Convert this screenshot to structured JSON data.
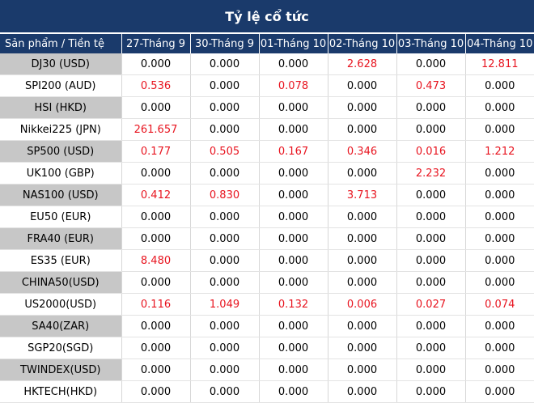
{
  "title": "Tỷ lệ cổ tức",
  "headers": [
    "Sản phẩm / Tiền tệ",
    "27-Tháng 9",
    "30-Tháng 9",
    "01-Tháng 10",
    "02-Tháng 10",
    "03-Tháng 10",
    "04-Tháng 10"
  ],
  "colors": {
    "header_bg": "#1a3a6b",
    "highlight": "#e8141f",
    "alt_row_bg": "#c7c7c7"
  },
  "rows": [
    {
      "product": "DJ30 (USD)",
      "values": [
        "0.000",
        "0.000",
        "0.000",
        "2.628",
        "0.000",
        "12.811"
      ]
    },
    {
      "product": "SPI200 (AUD)",
      "values": [
        "0.536",
        "0.000",
        "0.078",
        "0.000",
        "0.473",
        "0.000"
      ]
    },
    {
      "product": "HSI (HKD)",
      "values": [
        "0.000",
        "0.000",
        "0.000",
        "0.000",
        "0.000",
        "0.000"
      ]
    },
    {
      "product": "Nikkei225 (JPN)",
      "values": [
        "261.657",
        "0.000",
        "0.000",
        "0.000",
        "0.000",
        "0.000"
      ]
    },
    {
      "product": "SP500 (USD)",
      "values": [
        "0.177",
        "0.505",
        "0.167",
        "0.346",
        "0.016",
        "1.212"
      ]
    },
    {
      "product": "UK100 (GBP)",
      "values": [
        "0.000",
        "0.000",
        "0.000",
        "0.000",
        "2.232",
        "0.000"
      ]
    },
    {
      "product": "NAS100 (USD)",
      "values": [
        "0.412",
        "0.830",
        "0.000",
        "3.713",
        "0.000",
        "0.000"
      ]
    },
    {
      "product": "EU50 (EUR)",
      "values": [
        "0.000",
        "0.000",
        "0.000",
        "0.000",
        "0.000",
        "0.000"
      ]
    },
    {
      "product": "FRA40 (EUR)",
      "values": [
        "0.000",
        "0.000",
        "0.000",
        "0.000",
        "0.000",
        "0.000"
      ]
    },
    {
      "product": "ES35 (EUR)",
      "values": [
        "8.480",
        "0.000",
        "0.000",
        "0.000",
        "0.000",
        "0.000"
      ]
    },
    {
      "product": "CHINA50(USD)",
      "values": [
        "0.000",
        "0.000",
        "0.000",
        "0.000",
        "0.000",
        "0.000"
      ]
    },
    {
      "product": "US2000(USD)",
      "values": [
        "0.116",
        "1.049",
        "0.132",
        "0.006",
        "0.027",
        "0.074"
      ]
    },
    {
      "product": "SA40(ZAR)",
      "values": [
        "0.000",
        "0.000",
        "0.000",
        "0.000",
        "0.000",
        "0.000"
      ]
    },
    {
      "product": "SGP20(SGD)",
      "values": [
        "0.000",
        "0.000",
        "0.000",
        "0.000",
        "0.000",
        "0.000"
      ]
    },
    {
      "product": "TWINDEX(USD)",
      "values": [
        "0.000",
        "0.000",
        "0.000",
        "0.000",
        "0.000",
        "0.000"
      ]
    },
    {
      "product": "HKTECH(HKD)",
      "values": [
        "0.000",
        "0.000",
        "0.000",
        "0.000",
        "0.000",
        "0.000"
      ]
    }
  ]
}
